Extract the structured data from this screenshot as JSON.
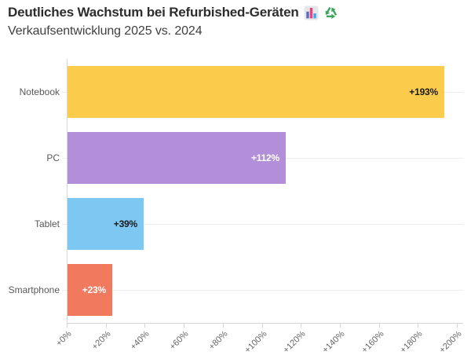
{
  "header": {
    "title": "Deutliches Wachstum bei Refurbished-Geräten",
    "subtitle": "Verkaufsentwicklung 2025 vs. 2024",
    "icons": [
      "bar-chart",
      "recycling"
    ]
  },
  "chart_data": {
    "type": "bar",
    "orientation": "horizontal",
    "title": "Deutliches Wachstum bei Refurbished-Geräten",
    "subtitle": "Verkaufsentwicklung 2025 vs. 2024",
    "categories": [
      "Notebook",
      "PC",
      "Tablet",
      "Smartphone"
    ],
    "values": [
      193,
      112,
      39,
      23
    ],
    "value_labels": [
      "+193%",
      "+112%",
      "+39%",
      "+23%"
    ],
    "bar_colors": [
      "#FBCC4C",
      "#B48FD9",
      "#7CC8F2",
      "#F1795E"
    ],
    "value_label_colors": [
      "#1a1a1a",
      "#ffffff",
      "#1a1a1a",
      "#ffffff"
    ],
    "xlabel": "",
    "ylabel": "",
    "xlim": [
      0,
      200
    ],
    "x_tick_values": [
      0,
      20,
      40,
      60,
      80,
      100,
      120,
      140,
      160,
      180,
      200
    ],
    "x_tick_labels": [
      "+0%",
      "+20%",
      "+40%",
      "+60%",
      "+80%",
      "+100%",
      "+120%",
      "+140%",
      "+160%",
      "+180%",
      "+200%"
    ],
    "grid": "horizontal category gridlines, light gray",
    "legend": "none"
  },
  "colors": {
    "background": "#ffffff",
    "title_text": "#2d2d2d",
    "subtitle_text": "#404040",
    "category_text": "#595959",
    "tick_text": "#666666",
    "axis_line": "#d4d4d4",
    "gridline": "#ededed"
  }
}
